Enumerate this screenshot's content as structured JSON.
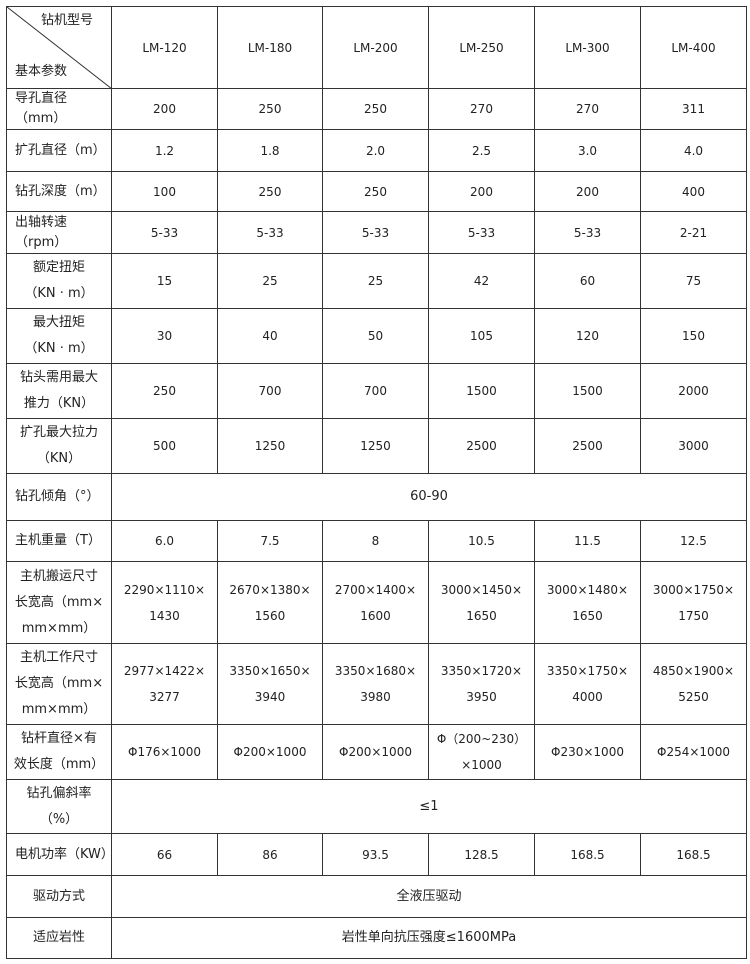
{
  "header": {
    "corner_top": "钻机型号",
    "corner_bottom": "基本参数",
    "models": [
      "LM-120",
      "LM-180",
      "LM-200",
      "LM-250",
      "LM-300",
      "LM-400"
    ]
  },
  "rows": [
    {
      "label": [
        "导孔直径（mm）"
      ],
      "values": [
        [
          "200"
        ],
        [
          "250"
        ],
        [
          "250"
        ],
        [
          "270"
        ],
        [
          "270"
        ],
        [
          "311"
        ]
      ]
    },
    {
      "label": [
        "扩孔直径（m）"
      ],
      "values": [
        [
          "1.2"
        ],
        [
          "1.8"
        ],
        [
          "2.0"
        ],
        [
          "2.5"
        ],
        [
          "3.0"
        ],
        [
          "4.0"
        ]
      ]
    },
    {
      "label": [
        "钻孔深度（m）"
      ],
      "values": [
        [
          "100"
        ],
        [
          "250"
        ],
        [
          "250"
        ],
        [
          "200"
        ],
        [
          "200"
        ],
        [
          "400"
        ]
      ]
    },
    {
      "label": [
        "出轴转速（rpm）"
      ],
      "values": [
        [
          "5-33"
        ],
        [
          "5-33"
        ],
        [
          "5-33"
        ],
        [
          "5-33"
        ],
        [
          "5-33"
        ],
        [
          "2-21"
        ]
      ]
    },
    {
      "label": [
        "额定扭矩",
        "（KN · m）"
      ],
      "values": [
        [
          "15"
        ],
        [
          "25"
        ],
        [
          "25"
        ],
        [
          "42"
        ],
        [
          "60"
        ],
        [
          "75"
        ]
      ]
    },
    {
      "label": [
        "最大扭矩",
        "（KN · m）"
      ],
      "values": [
        [
          "30"
        ],
        [
          "40"
        ],
        [
          "50"
        ],
        [
          "105"
        ],
        [
          "120"
        ],
        [
          "150"
        ]
      ]
    },
    {
      "label": [
        "钻头需用最大",
        "推力（KN）"
      ],
      "values": [
        [
          "250"
        ],
        [
          "700"
        ],
        [
          "700"
        ],
        [
          "1500"
        ],
        [
          "1500"
        ],
        [
          "2000"
        ]
      ]
    },
    {
      "label": [
        "扩孔最大拉力",
        "（KN）"
      ],
      "values": [
        [
          "500"
        ],
        [
          "1250"
        ],
        [
          "1250"
        ],
        [
          "2500"
        ],
        [
          "2500"
        ],
        [
          "3000"
        ]
      ]
    },
    {
      "label": [
        "钻孔倾角（°）"
      ],
      "span": "60-90"
    },
    {
      "label": [
        "主机重量（T）"
      ],
      "values": [
        [
          "6.0"
        ],
        [
          "7.5"
        ],
        [
          "8"
        ],
        [
          "10.5"
        ],
        [
          "11.5"
        ],
        [
          "12.5"
        ]
      ]
    },
    {
      "label": [
        "主机搬运尺寸",
        "长宽高（mm×",
        "mm×mm）"
      ],
      "values": [
        [
          "2290×1110×",
          "1430"
        ],
        [
          "2670×1380×",
          "1560"
        ],
        [
          "2700×1400×",
          "1600"
        ],
        [
          "3000×1450×",
          "1650"
        ],
        [
          "3000×1480×",
          "1650"
        ],
        [
          "3000×1750×",
          "1750"
        ]
      ]
    },
    {
      "label": [
        "主机工作尺寸",
        "长宽高（mm×",
        "mm×mm）"
      ],
      "values": [
        [
          "2977×1422×",
          "3277"
        ],
        [
          "3350×1650×",
          "3940"
        ],
        [
          "3350×1680×",
          "3980"
        ],
        [
          "3350×1720×",
          "3950"
        ],
        [
          "3350×1750×",
          "4000"
        ],
        [
          "4850×1900×",
          "5250"
        ]
      ]
    },
    {
      "label": [
        "钻杆直径×有",
        "效长度（mm）"
      ],
      "values": [
        [
          "Φ176×1000"
        ],
        [
          "Φ200×1000"
        ],
        [
          "Φ200×1000"
        ],
        [
          "Φ（200~230）",
          "×1000"
        ],
        [
          "Φ230×1000"
        ],
        [
          "Φ254×1000"
        ]
      ]
    },
    {
      "label": [
        "钻孔偏斜率",
        "（%）"
      ],
      "span": "≤1"
    },
    {
      "label": [
        "电机功率（KW）"
      ],
      "values": [
        [
          "66"
        ],
        [
          "86"
        ],
        [
          "93.5"
        ],
        [
          "128.5"
        ],
        [
          "168.5"
        ],
        [
          "168.5"
        ]
      ]
    },
    {
      "label": [
        "驱动方式"
      ],
      "span": "全液压驱动",
      "center_label": true
    },
    {
      "label": [
        "适应岩性"
      ],
      "span": "岩性单向抗压强度≤1600MPa",
      "center_label": true
    }
  ]
}
